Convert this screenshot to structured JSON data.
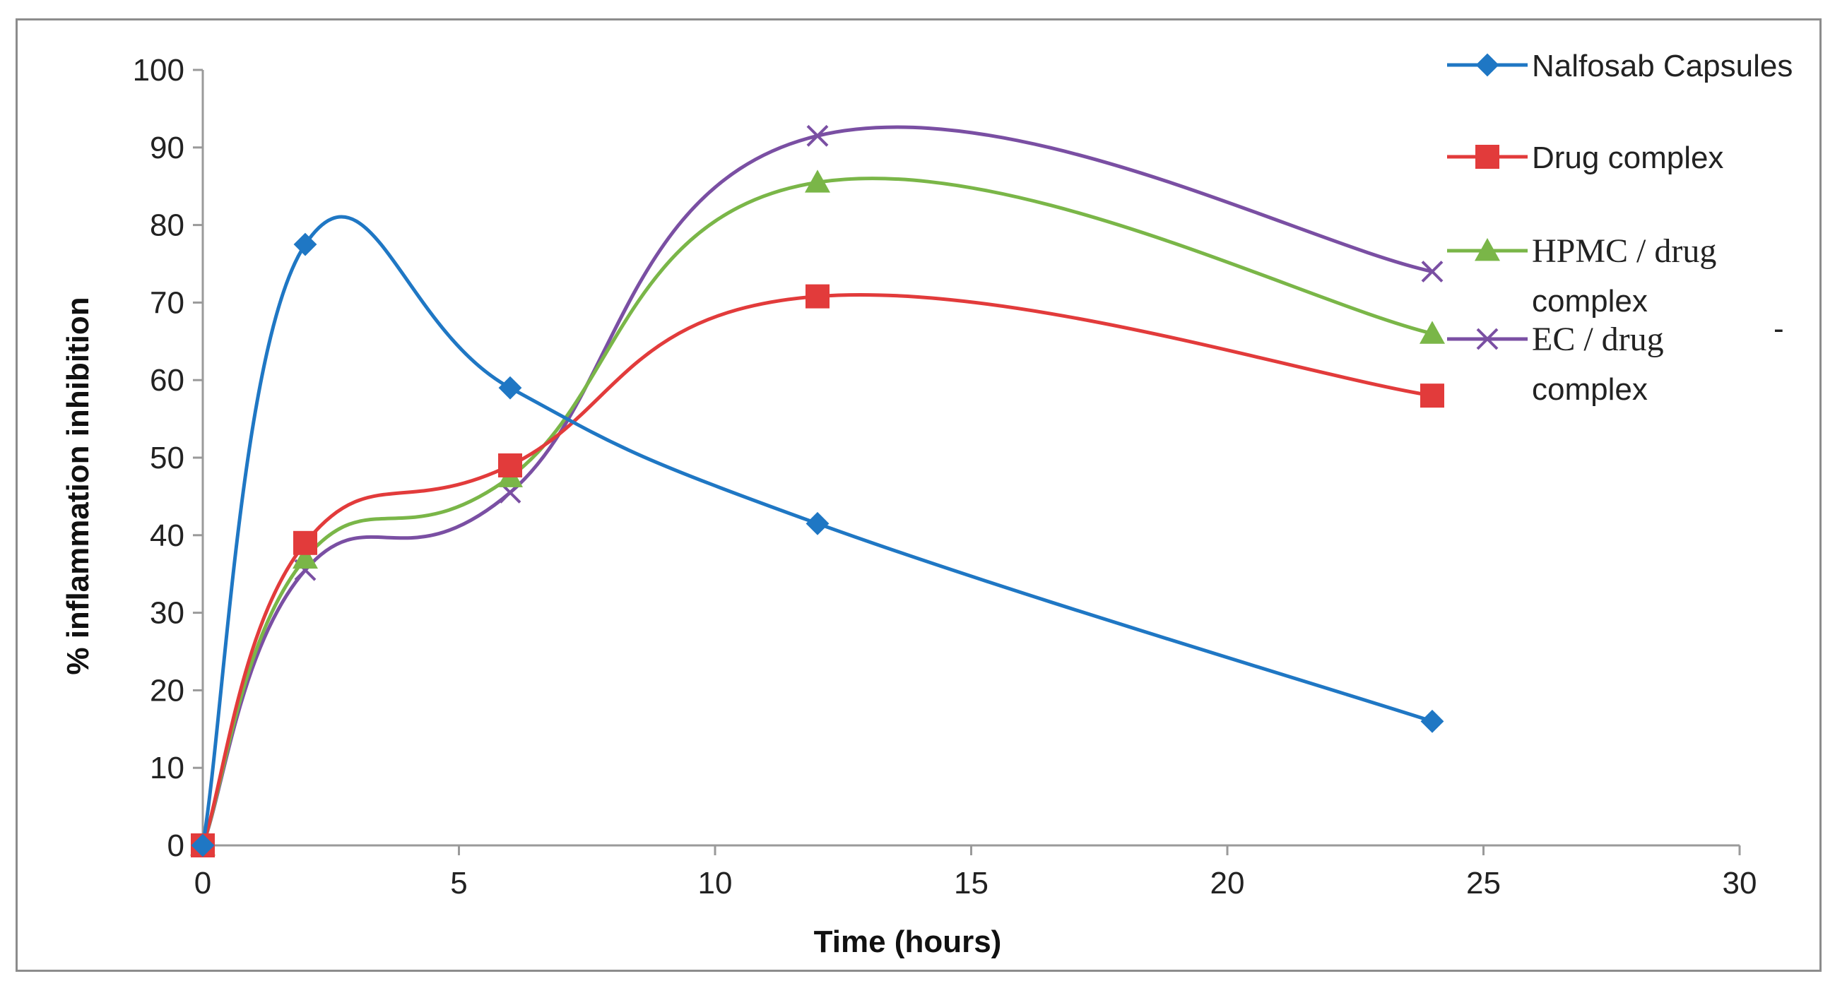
{
  "chart_data": {
    "type": "line",
    "xlabel": "Time (hours)",
    "ylabel": "% inflammation inhibition",
    "xlim": [
      0,
      30
    ],
    "ylim": [
      0,
      100
    ],
    "xticks": [
      "0",
      "5",
      "10",
      "15",
      "20",
      "25",
      "30"
    ],
    "yticks": [
      "0",
      "10",
      "20",
      "30",
      "40",
      "50",
      "60",
      "70",
      "80",
      "90",
      "100"
    ],
    "x": [
      0,
      2,
      6,
      12,
      24
    ],
    "series": [
      {
        "name": "Nalfosab Capsules",
        "color": "#1f77c4",
        "marker": "diamond",
        "values": [
          0,
          77.5,
          59,
          41.5,
          16
        ]
      },
      {
        "name": "Drug complex",
        "color": "#e23b3b",
        "marker": "square",
        "values": [
          0,
          39,
          49,
          70.8,
          58
        ]
      },
      {
        "name": "HPMC / drug complex",
        "color": "#7ab648",
        "marker": "triangle",
        "values": [
          0,
          37,
          47.5,
          85.5,
          66
        ]
      },
      {
        "name": "EC / drug complex",
        "color": "#7a4fa3",
        "marker": "x",
        "values": [
          0,
          35.5,
          45.5,
          91.5,
          74
        ]
      }
    ],
    "legend": {
      "items": [
        {
          "line1": "Nalfosab Capsules",
          "line2": ""
        },
        {
          "line1": "Drug complex",
          "line2": ""
        },
        {
          "line1": "HPMC / drug",
          "line2": "complex"
        },
        {
          "line1": "EC / drug",
          "line2": "complex"
        }
      ],
      "stray_mark": "-"
    }
  }
}
